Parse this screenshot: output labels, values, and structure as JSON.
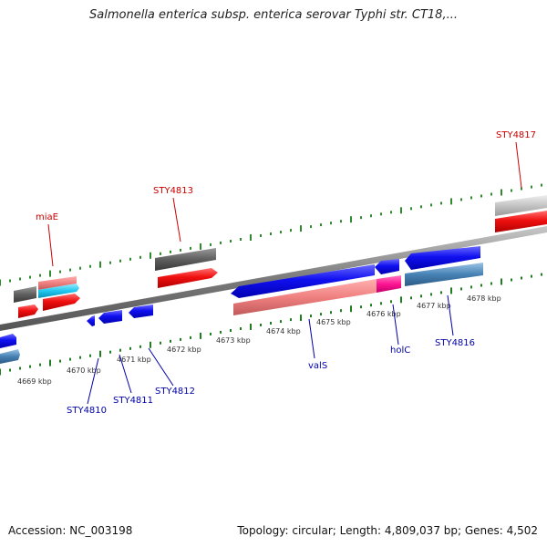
{
  "title": "Salmonella enterica subsp. enterica serovar Typhi str. CT18,...",
  "footer": {
    "accession": "Accession: NC_003198",
    "summary": "Topology: circular; Length: 4,809,037 bp; Genes: 4,502"
  },
  "colors": {
    "backbone": "#8a8a8a",
    "ticks_above": "#2e8b2e",
    "ticks_below": "#1f7f1f",
    "label_red": "#cc0000",
    "label_blue": "#0000aa",
    "gene_blue": "#0a0ae6",
    "gene_red": "#ee1111",
    "gene_pink": "#f08080",
    "gene_magenta": "#ff1493",
    "gene_cyan": "#20c8ef",
    "gene_steelblue": "#4682b4",
    "gene_gray": "#5f5f5f",
    "gene_lightgray": "#bdbdbd"
  },
  "scale_ticks": [
    "4669 kbp",
    "4670 kbp",
    "4671 kbp",
    "4672 kbp",
    "4673 kbp",
    "4674 kbp",
    "4675 kbp",
    "4676 kbp",
    "4677 kbp",
    "4678 kbp"
  ],
  "gene_labels": [
    {
      "text": "miaE",
      "color": "red"
    },
    {
      "text": "STY4813",
      "color": "red"
    },
    {
      "text": "STY4817",
      "color": "red"
    },
    {
      "text": "STY4810",
      "color": "blue"
    },
    {
      "text": "STY4811",
      "color": "blue"
    },
    {
      "text": "STY4812",
      "color": "blue"
    },
    {
      "text": "valS",
      "color": "blue"
    },
    {
      "text": "holC",
      "color": "blue"
    },
    {
      "text": "STY4816",
      "color": "blue"
    }
  ]
}
